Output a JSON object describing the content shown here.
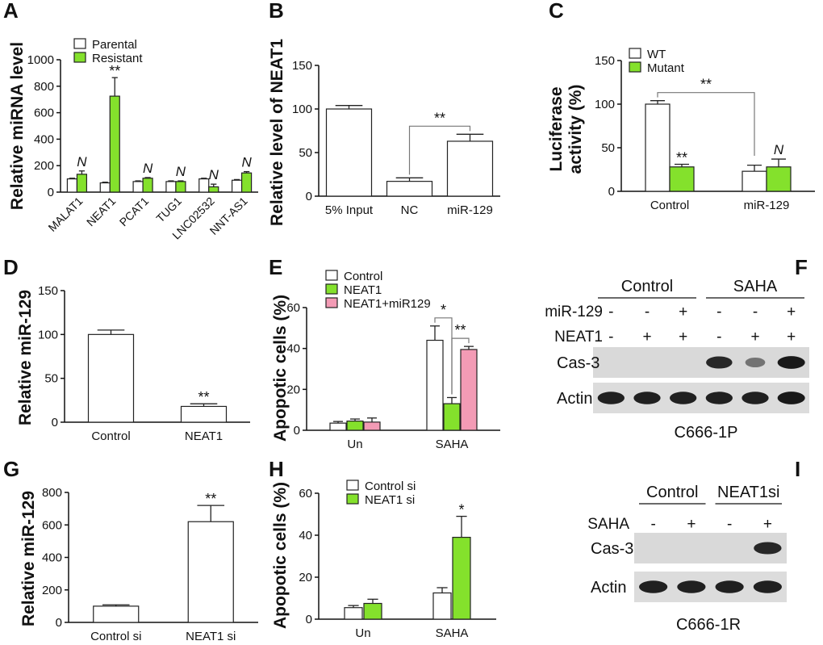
{
  "colors": {
    "green": "#84e12c",
    "pink": "#f39bb5",
    "white": "#ffffff",
    "stroke": "#222222"
  },
  "chart_data": [
    {
      "panel": "A",
      "type": "bar",
      "ylabel": "Relative miRNA level",
      "ylim": [
        0,
        1000
      ],
      "yticks": [
        0,
        200,
        400,
        600,
        800,
        1000
      ],
      "categories": [
        "MALAT1",
        "NEAT1",
        "PCAT1",
        "TUG1",
        "LNC02532",
        "NNT-AS1"
      ],
      "series": [
        {
          "name": "Parental",
          "color": "white",
          "values": [
            100,
            70,
            80,
            80,
            100,
            90
          ],
          "errors": [
            5,
            5,
            5,
            5,
            5,
            5
          ]
        },
        {
          "name": "Resistant",
          "color": "green",
          "values": [
            135,
            725,
            105,
            80,
            40,
            145
          ],
          "errors": [
            25,
            140,
            5,
            5,
            20,
            10
          ]
        }
      ],
      "annotations": [
        {
          "category": 0,
          "series": 1,
          "text": "N",
          "italic": true
        },
        {
          "category": 1,
          "series": 1,
          "text": "**"
        },
        {
          "category": 2,
          "series": 1,
          "text": "N",
          "italic": true
        },
        {
          "category": 3,
          "series": 1,
          "text": "N",
          "italic": true
        },
        {
          "category": 4,
          "series": 1,
          "text": "N",
          "italic": true
        },
        {
          "category": 5,
          "series": 1,
          "text": "N",
          "italic": true
        }
      ],
      "legend_position": "top-left"
    },
    {
      "panel": "B",
      "type": "bar",
      "ylabel": "Relative level of NEAT1",
      "ylim": [
        0,
        150
      ],
      "yticks": [
        0,
        50,
        100,
        150
      ],
      "categories": [
        "5% Input",
        "NC",
        "miR-129"
      ],
      "series": [
        {
          "name": "",
          "color": "white",
          "values": [
            100,
            17,
            63
          ],
          "errors": [
            4,
            4,
            8
          ]
        }
      ],
      "comparisons": [
        {
          "from": 1,
          "to": 2,
          "text": "**"
        }
      ]
    },
    {
      "panel": "C",
      "type": "bar",
      "ylabel": "Luciferase activity (%)",
      "ylim": [
        0,
        150
      ],
      "yticks": [
        0,
        50,
        100,
        150
      ],
      "categories": [
        "Control",
        "miR-129"
      ],
      "series": [
        {
          "name": "WT",
          "color": "white",
          "values": [
            100,
            23
          ],
          "errors": [
            4,
            7
          ]
        },
        {
          "name": "Mutant",
          "color": "green",
          "values": [
            28,
            28
          ],
          "errors": [
            3,
            9
          ]
        }
      ],
      "annotations": [
        {
          "category": 0,
          "series": 1,
          "text": "**"
        },
        {
          "category": 1,
          "series": 1,
          "text": "N",
          "italic": true
        }
      ],
      "comparisons": [
        {
          "from": 0,
          "to": 1,
          "text": "**"
        }
      ],
      "legend_position": "top-left"
    },
    {
      "panel": "D",
      "type": "bar",
      "ylabel": "Relative miR-129",
      "ylim": [
        0,
        150
      ],
      "yticks": [
        0,
        50,
        100,
        150
      ],
      "categories": [
        "Control",
        "NEAT1"
      ],
      "series": [
        {
          "name": "",
          "color": "white",
          "values": [
            100,
            18
          ],
          "errors": [
            5,
            3
          ]
        }
      ],
      "annotations": [
        {
          "category": 1,
          "series": 0,
          "text": "**"
        }
      ]
    },
    {
      "panel": "E",
      "type": "bar",
      "ylabel": "Apopotic cells (%)",
      "ylim": [
        0,
        60
      ],
      "yticks": [
        0,
        20,
        40,
        60
      ],
      "categories": [
        "Un",
        "SAHA"
      ],
      "series": [
        {
          "name": "Control",
          "color": "white",
          "values": [
            3.5,
            44
          ],
          "errors": [
            0.8,
            7
          ]
        },
        {
          "name": "NEAT1",
          "color": "green",
          "values": [
            4.5,
            13
          ],
          "errors": [
            1,
            3
          ]
        },
        {
          "name": "NEAT1+miR129",
          "color": "pink",
          "values": [
            4,
            39.5
          ],
          "errors": [
            2,
            1.5
          ]
        }
      ],
      "comparisons": [
        {
          "category": 1,
          "from": 0,
          "to": 1,
          "text": "*"
        },
        {
          "category": 1,
          "from": 1,
          "to": 2,
          "text": "**"
        }
      ],
      "legend_position": "top-left"
    },
    {
      "panel": "G",
      "type": "bar",
      "ylabel": "Relative miR-129",
      "ylim": [
        0,
        800
      ],
      "yticks": [
        0,
        200,
        400,
        600,
        800
      ],
      "categories": [
        "Control si",
        "NEAT1 si"
      ],
      "series": [
        {
          "name": "",
          "color": "white",
          "values": [
            100,
            620
          ],
          "errors": [
            8,
            100
          ]
        }
      ],
      "annotations": [
        {
          "category": 1,
          "series": 0,
          "text": "**"
        }
      ]
    },
    {
      "panel": "H",
      "type": "bar",
      "ylabel": "Apopotic cells (%)",
      "ylim": [
        0,
        60
      ],
      "yticks": [
        0,
        20,
        40,
        60
      ],
      "categories": [
        "Un",
        "SAHA"
      ],
      "series": [
        {
          "name": "Control si",
          "color": "white",
          "values": [
            5.5,
            12.5
          ],
          "errors": [
            1,
            2.5
          ]
        },
        {
          "name": "NEAT1 si",
          "color": "green",
          "values": [
            7.5,
            39
          ],
          "errors": [
            2,
            10
          ]
        }
      ],
      "annotations": [
        {
          "category": 1,
          "series": 1,
          "text": "*"
        }
      ],
      "legend_position": "top-left"
    }
  ],
  "blots": {
    "F": {
      "panel": "F",
      "groups": [
        "Control",
        "SAHA"
      ],
      "rows": [
        {
          "label": "miR-129",
          "marks": [
            "-",
            "-",
            "+",
            "-",
            "-",
            "+"
          ]
        },
        {
          "label": "NEAT1",
          "marks": [
            "-",
            "+",
            "+",
            "-",
            "+",
            "+"
          ]
        }
      ],
      "bands": [
        "Cas-3",
        "Actin"
      ],
      "cas3_intensity": [
        0,
        0,
        0,
        0.85,
        0.35,
        0.95
      ],
      "actin_intensity": [
        0.9,
        0.9,
        0.9,
        0.9,
        0.9,
        0.95
      ],
      "caption": "C666-1P"
    },
    "I": {
      "panel": "I",
      "groups": [
        "Control",
        "NEAT1si"
      ],
      "rows": [
        {
          "label": "SAHA",
          "marks": [
            "-",
            "+",
            "-",
            "+"
          ]
        }
      ],
      "bands": [
        "Cas-3",
        "Actin"
      ],
      "cas3_intensity": [
        0,
        0,
        0,
        0.85
      ],
      "actin_intensity": [
        0.9,
        0.9,
        0.9,
        0.9
      ],
      "caption": "C666-1R"
    }
  }
}
